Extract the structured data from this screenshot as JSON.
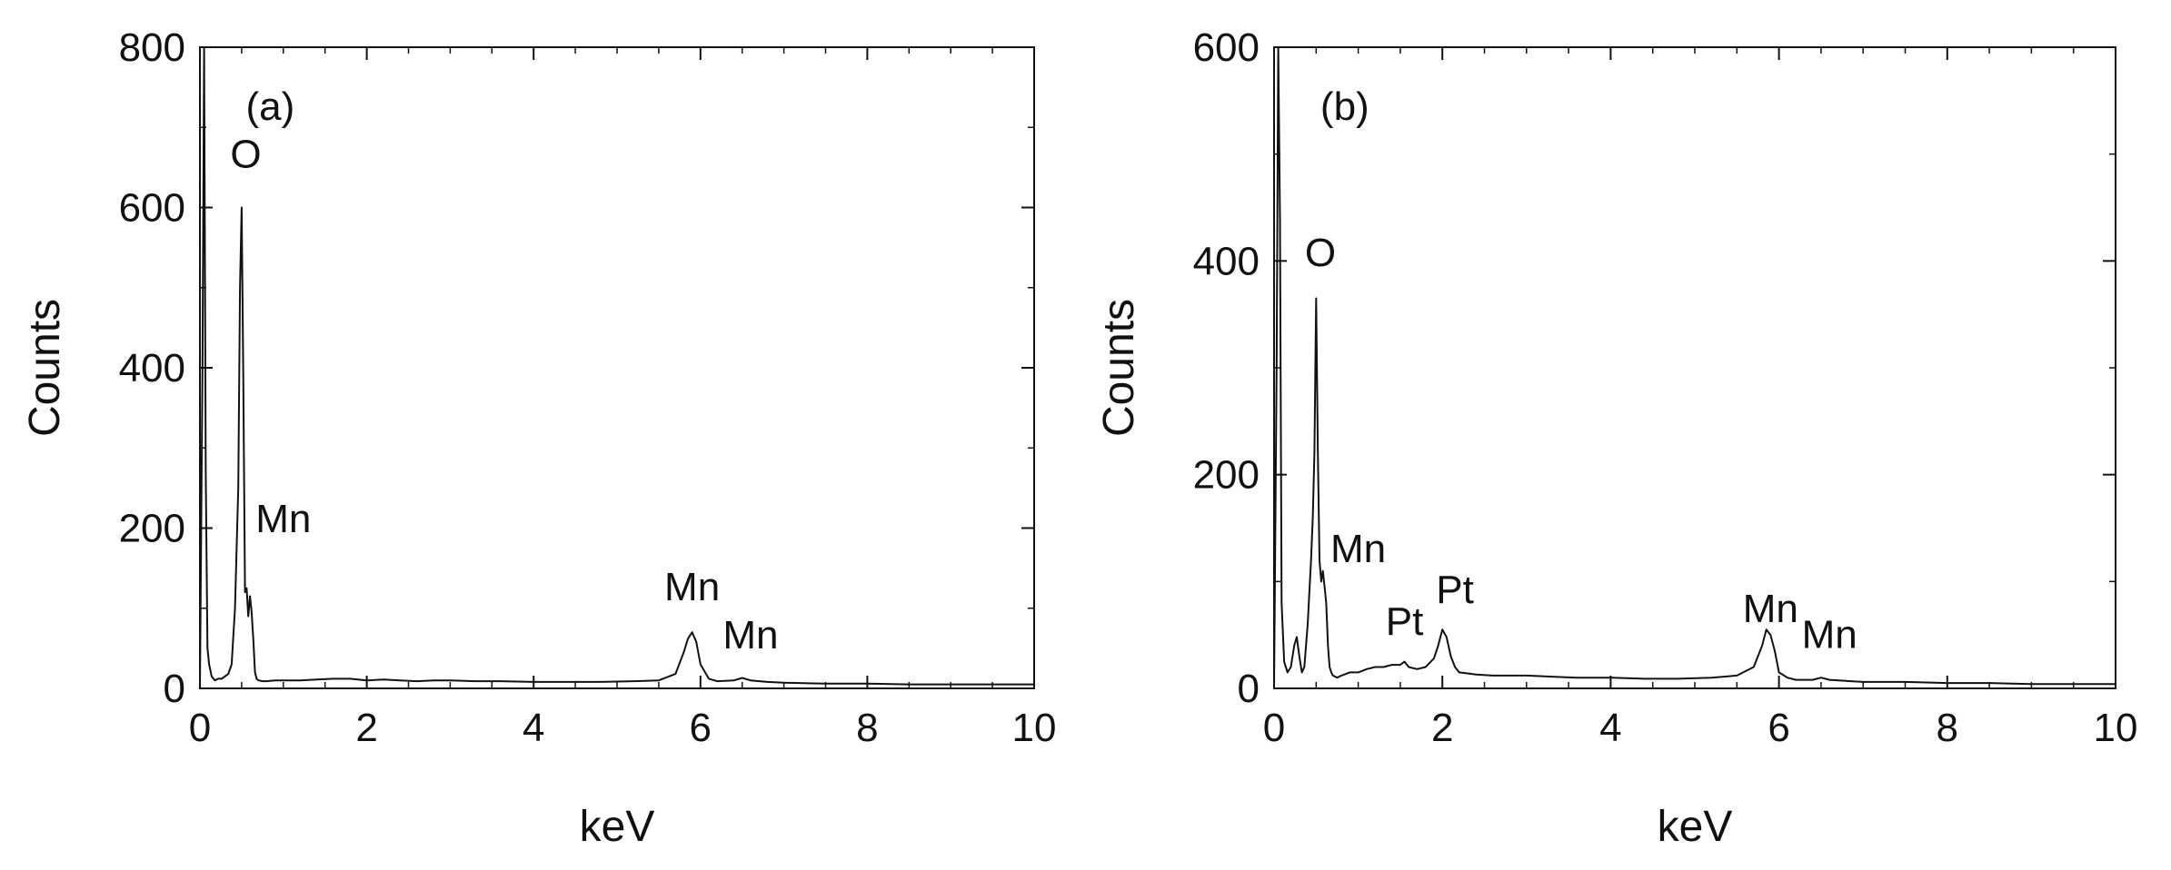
{
  "colors": {
    "line": "#111111",
    "background": "#ffffff"
  },
  "chart_data": [
    {
      "type": "line",
      "panel_label": "(a)",
      "xlabel": "keV",
      "ylabel": "Counts",
      "xlim": [
        0,
        10
      ],
      "ylim": [
        0,
        800
      ],
      "xticks": [
        0,
        2,
        4,
        6,
        8,
        10
      ],
      "yticks": [
        0,
        200,
        400,
        600,
        800
      ],
      "x_minor_step": 0.5,
      "y_minor_step": 100,
      "grid": false,
      "series": [
        {
          "x": [
            0.0,
            0.03,
            0.05,
            0.07,
            0.09,
            0.11,
            0.14,
            0.18,
            0.22,
            0.26,
            0.3,
            0.34,
            0.38,
            0.42,
            0.46,
            0.48,
            0.5,
            0.52,
            0.54,
            0.56,
            0.58,
            0.6,
            0.62,
            0.64,
            0.66,
            0.68,
            0.7,
            0.75,
            0.8,
            0.9,
            1.0,
            1.2,
            1.4,
            1.6,
            1.8,
            2.0,
            2.2,
            2.4,
            2.6,
            2.8,
            3.0,
            3.3,
            3.6,
            4.0,
            4.4,
            4.8,
            5.2,
            5.5,
            5.7,
            5.8,
            5.85,
            5.9,
            5.95,
            6.0,
            6.1,
            6.2,
            6.4,
            6.5,
            6.6,
            6.8,
            7.0,
            7.5,
            8.0,
            8.5,
            9.0,
            9.5,
            10.0
          ],
          "y": [
            0,
            400,
            800,
            270,
            50,
            30,
            15,
            10,
            12,
            12,
            15,
            18,
            30,
            100,
            250,
            500,
            600,
            390,
            120,
            125,
            90,
            115,
            95,
            60,
            20,
            12,
            10,
            9,
            9,
            10,
            10,
            10,
            11,
            12,
            12,
            10,
            11,
            10,
            9,
            10,
            10,
            9,
            9,
            8,
            8,
            8,
            9,
            10,
            18,
            45,
            62,
            70,
            58,
            30,
            12,
            9,
            10,
            13,
            10,
            8,
            7,
            6,
            6,
            5,
            5,
            5,
            5
          ]
        }
      ],
      "annotations": [
        {
          "text": "O",
          "x": 0.55,
          "y": 650
        },
        {
          "text": "Mn",
          "x": 1.0,
          "y": 195
        },
        {
          "text": "Mn",
          "x": 5.9,
          "y": 110
        },
        {
          "text": "Mn",
          "x": 6.6,
          "y": 50
        }
      ]
    },
    {
      "type": "line",
      "panel_label": "(b)",
      "xlabel": "keV",
      "ylabel": "Counts",
      "xlim": [
        0,
        10
      ],
      "ylim": [
        0,
        600
      ],
      "xticks": [
        0,
        2,
        4,
        6,
        8,
        10
      ],
      "yticks": [
        0,
        200,
        400,
        600
      ],
      "x_minor_step": 0.5,
      "y_minor_step": 100,
      "grid": false,
      "series": [
        {
          "x": [
            0.0,
            0.03,
            0.05,
            0.07,
            0.09,
            0.12,
            0.16,
            0.2,
            0.24,
            0.27,
            0.3,
            0.33,
            0.36,
            0.4,
            0.44,
            0.46,
            0.48,
            0.5,
            0.52,
            0.54,
            0.56,
            0.58,
            0.6,
            0.62,
            0.64,
            0.66,
            0.68,
            0.7,
            0.75,
            0.8,
            0.9,
            1.0,
            1.1,
            1.2,
            1.3,
            1.4,
            1.5,
            1.55,
            1.6,
            1.7,
            1.8,
            1.9,
            1.95,
            2.0,
            2.05,
            2.1,
            2.15,
            2.2,
            2.3,
            2.4,
            2.6,
            2.8,
            3.0,
            3.3,
            3.6,
            4.0,
            4.4,
            4.8,
            5.2,
            5.5,
            5.7,
            5.8,
            5.85,
            5.9,
            5.95,
            6.0,
            6.1,
            6.2,
            6.4,
            6.5,
            6.6,
            6.8,
            7.0,
            7.5,
            8.0,
            8.5,
            9.0,
            9.5,
            10.0
          ],
          "y": [
            0,
            300,
            600,
            440,
            80,
            25,
            15,
            20,
            40,
            48,
            30,
            15,
            20,
            60,
            120,
            160,
            220,
            365,
            220,
            120,
            100,
            110,
            95,
            80,
            40,
            20,
            15,
            12,
            10,
            12,
            15,
            15,
            18,
            20,
            20,
            22,
            22,
            25,
            20,
            18,
            20,
            28,
            40,
            55,
            48,
            30,
            20,
            15,
            14,
            13,
            12,
            12,
            12,
            11,
            10,
            10,
            9,
            9,
            10,
            12,
            20,
            40,
            55,
            50,
            35,
            15,
            10,
            8,
            8,
            10,
            8,
            7,
            6,
            6,
            5,
            5,
            4,
            4,
            4
          ]
        }
      ],
      "annotations": [
        {
          "text": "O",
          "x": 0.55,
          "y": 395
        },
        {
          "text": "Mn",
          "x": 1.0,
          "y": 118
        },
        {
          "text": "Pt",
          "x": 1.55,
          "y": 50
        },
        {
          "text": "Pt",
          "x": 2.15,
          "y": 80
        },
        {
          "text": "Mn",
          "x": 5.9,
          "y": 62
        },
        {
          "text": "Mn",
          "x": 6.6,
          "y": 38
        }
      ]
    }
  ]
}
